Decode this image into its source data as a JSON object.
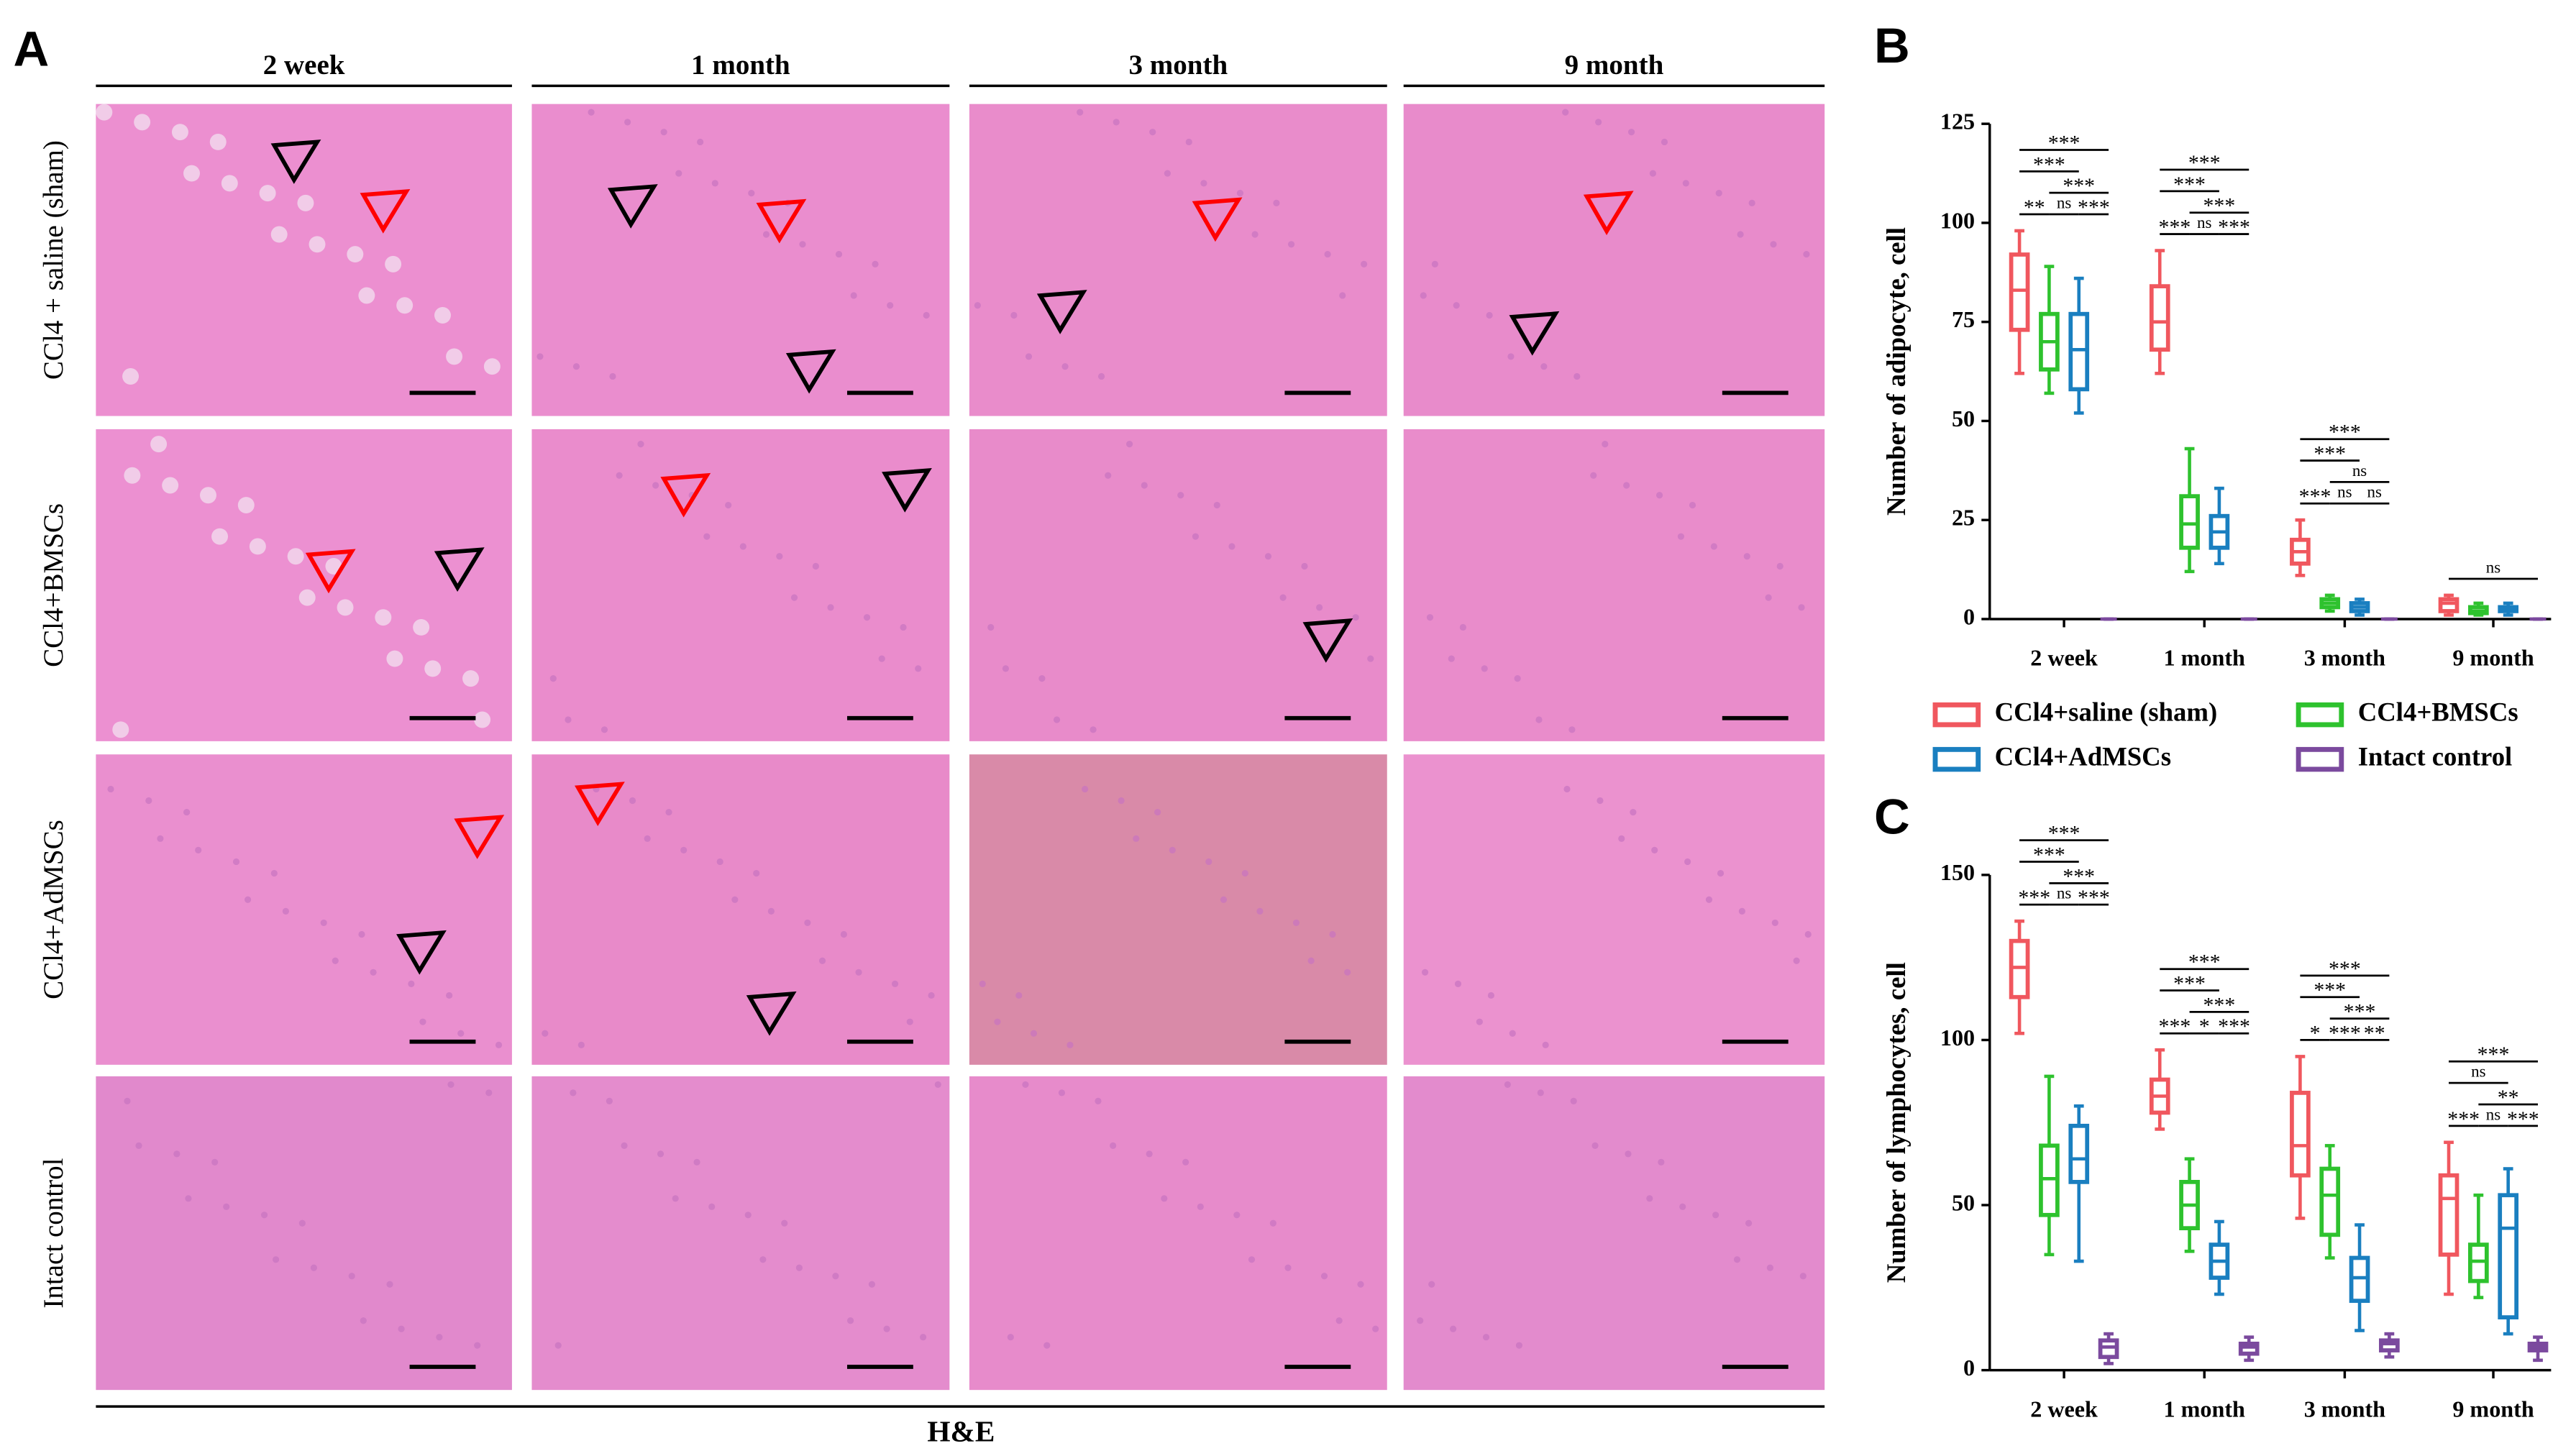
{
  "panel_a": {
    "label": "A",
    "columns": [
      "2 week",
      "1 month",
      "3 month",
      "9 month"
    ],
    "rows": [
      "CCl4 + saline (sham)",
      "CCl4+BMSCs",
      "CCl4+AdMSCs",
      "Intact control"
    ],
    "footer": "H&E"
  },
  "chart_data": [
    {
      "type": "box",
      "panel_label": "B",
      "y_label": "Number of adipocyte, cell",
      "categories": [
        "2 week",
        "1 month",
        "3 month",
        "9 month"
      ],
      "ylim": [
        0,
        125
      ],
      "yticks": [
        0,
        25,
        50,
        75,
        100,
        125
      ],
      "series": [
        {
          "name": "CCl4+saline (sham)",
          "color": "#f0575e",
          "values": [
            [
              62,
              73,
              83,
              92,
              98
            ],
            [
              62,
              68,
              75,
              84,
              93
            ],
            [
              11,
              14,
              17,
              20,
              25
            ],
            [
              1,
              2,
              4,
              5,
              6
            ]
          ]
        },
        {
          "name": "CCl4+BMSCs",
          "color": "#2ec22e",
          "values": [
            [
              57,
              63,
              70,
              77,
              89
            ],
            [
              12,
              18,
              24,
              31,
              43
            ],
            [
              2,
              3,
              4,
              5,
              6
            ],
            [
              1,
              1.5,
              2,
              3,
              4
            ]
          ]
        },
        {
          "name": "CCl4+AdMSCs",
          "color": "#1a7fc0",
          "values": [
            [
              52,
              58,
              68,
              77,
              86
            ],
            [
              14,
              18,
              22,
              26,
              33
            ],
            [
              1,
              2,
              3,
              4,
              5
            ],
            [
              1,
              2,
              2,
              3,
              4
            ]
          ]
        },
        {
          "name": "Intact control",
          "color": "#7b4a9e",
          "values": [
            [
              0,
              0,
              0,
              0,
              0
            ],
            [
              0,
              0,
              0,
              0,
              0
            ],
            [
              0,
              0,
              0,
              0,
              0
            ],
            [
              0,
              0,
              0,
              0,
              0
            ]
          ]
        }
      ],
      "annotations": [
        [
          {
            "label": "***",
            "span": [
              0,
              3
            ]
          },
          {
            "label": "***",
            "span": [
              0,
              2
            ]
          },
          {
            "label": "***",
            "span": [
              1,
              3
            ]
          },
          {
            "label": "**",
            "span": [
              0,
              1
            ]
          },
          {
            "label": "ns",
            "span": [
              1,
              2
            ]
          },
          {
            "label": "***",
            "span": [
              2,
              3
            ]
          }
        ],
        [
          {
            "label": "***",
            "span": [
              0,
              3
            ]
          },
          {
            "label": "***",
            "span": [
              0,
              2
            ]
          },
          {
            "label": "***",
            "span": [
              0,
              1
            ]
          },
          {
            "label": "***",
            "span": [
              1,
              3
            ]
          },
          {
            "label": "ns",
            "span": [
              1,
              2
            ]
          },
          {
            "label": "***",
            "span": [
              2,
              3
            ]
          }
        ],
        [
          {
            "label": "***",
            "span": [
              0,
              3
            ]
          },
          {
            "label": "***",
            "span": [
              0,
              2
            ]
          },
          {
            "label": "***",
            "span": [
              0,
              1
            ]
          },
          {
            "label": "ns",
            "span": [
              1,
              3
            ]
          },
          {
            "label": "ns",
            "span": [
              1,
              2
            ]
          },
          {
            "label": "ns",
            "span": [
              2,
              3
            ]
          }
        ],
        [
          {
            "label": "ns",
            "span": [
              0,
              3
            ]
          }
        ]
      ]
    },
    {
      "type": "box",
      "panel_label": "C",
      "y_label": "Number of lymphocytes, cell",
      "categories": [
        "2 week",
        "1 month",
        "3 month",
        "9 month"
      ],
      "ylim": [
        0,
        150
      ],
      "yticks": [
        0,
        50,
        100,
        150
      ],
      "series": [
        {
          "color": "#f0575e",
          "values": [
            [
              102,
              113,
              122,
              130,
              136
            ],
            [
              73,
              78,
              83,
              88,
              97
            ],
            [
              46,
              59,
              68,
              84,
              95
            ],
            [
              23,
              35,
              52,
              59,
              69
            ]
          ]
        },
        {
          "color": "#2ec22e",
          "values": [
            [
              35,
              47,
              58,
              68,
              89
            ],
            [
              36,
              43,
              50,
              57,
              64
            ],
            [
              34,
              41,
              53,
              61,
              68
            ],
            [
              22,
              27,
              33,
              38,
              53
            ]
          ]
        },
        {
          "color": "#1a7fc0",
          "values": [
            [
              33,
              57,
              64,
              74,
              80
            ],
            [
              23,
              28,
              33,
              38,
              45
            ],
            [
              12,
              21,
              28,
              34,
              44
            ],
            [
              11,
              16,
              43,
              53,
              61
            ]
          ]
        },
        {
          "color": "#7b4a9e",
          "values": [
            [
              2,
              4,
              7,
              9,
              11
            ],
            [
              3,
              5,
              7,
              8,
              10
            ],
            [
              4,
              6,
              8,
              9,
              11
            ],
            [
              3,
              6,
              7,
              8,
              10
            ]
          ]
        }
      ],
      "annotations": [
        [
          {
            "label": "***",
            "span": [
              0,
              3
            ]
          },
          {
            "label": "***",
            "span": [
              0,
              2
            ]
          },
          {
            "label": "***",
            "span": [
              1,
              3
            ]
          },
          {
            "label": "***",
            "span": [
              0,
              1
            ]
          },
          {
            "label": "ns",
            "span": [
              1,
              2
            ]
          },
          {
            "label": "***",
            "span": [
              2,
              3
            ]
          }
        ],
        [
          {
            "label": "***",
            "span": [
              0,
              3
            ]
          },
          {
            "label": "***",
            "span": [
              0,
              2
            ]
          },
          {
            "label": "***",
            "span": [
              0,
              1
            ]
          },
          {
            "label": "***",
            "span": [
              1,
              3
            ]
          },
          {
            "label": "*",
            "span": [
              1,
              2
            ]
          },
          {
            "label": "***",
            "span": [
              2,
              3
            ]
          }
        ],
        [
          {
            "label": "***",
            "span": [
              0,
              3
            ]
          },
          {
            "label": "***",
            "span": [
              0,
              2
            ]
          },
          {
            "label": "*",
            "span": [
              0,
              1
            ]
          },
          {
            "label": "***",
            "span": [
              1,
              3
            ]
          },
          {
            "label": "***",
            "span": [
              1,
              2
            ]
          },
          {
            "label": "**",
            "span": [
              2,
              3
            ]
          }
        ],
        [
          {
            "label": "***",
            "span": [
              0,
              3
            ]
          },
          {
            "label": "ns",
            "span": [
              0,
              2
            ]
          },
          {
            "label": "**",
            "span": [
              1,
              3
            ]
          },
          {
            "label": "***",
            "span": [
              0,
              1
            ]
          },
          {
            "label": "ns",
            "span": [
              1,
              2
            ]
          },
          {
            "label": "***",
            "span": [
              2,
              3
            ]
          }
        ]
      ]
    }
  ]
}
